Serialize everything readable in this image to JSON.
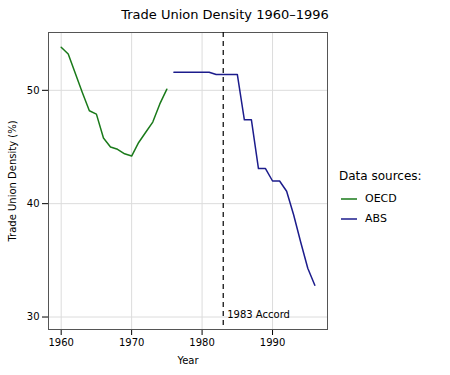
{
  "chart_data": {
    "type": "line",
    "title": "Trade Union Density 1960–1996",
    "x_label": "Year",
    "y_label": "Trade Union Density (%)",
    "legend_title": "Data sources:",
    "legend": "right",
    "grid": true,
    "x": [
      1960,
      1961,
      1962,
      1963,
      1964,
      1965,
      1966,
      1967,
      1968,
      1969,
      1970,
      1971,
      1972,
      1973,
      1974,
      1975,
      1976,
      1977,
      1978,
      1979,
      1980,
      1981,
      1982,
      1983,
      1984,
      1985,
      1986,
      1987,
      1988,
      1989,
      1990,
      1991,
      1992,
      1993,
      1994,
      1995,
      1996
    ],
    "series": [
      {
        "name": "OECD",
        "color": "#1a7a1a",
        "values": [
          53.8,
          53.2,
          51.5,
          49.8,
          48.2,
          47.9,
          45.8,
          45.0,
          44.8,
          44.4,
          44.2,
          45.4,
          46.3,
          47.2,
          48.8,
          50.1,
          null,
          null,
          null,
          null,
          null,
          null,
          null,
          null,
          null,
          null,
          null,
          null,
          null,
          null,
          null,
          null,
          null,
          null,
          null,
          null,
          null
        ]
      },
      {
        "name": "ABS",
        "color": "#1c1c8c",
        "values": [
          null,
          null,
          null,
          null,
          null,
          null,
          null,
          null,
          null,
          null,
          null,
          null,
          null,
          null,
          null,
          null,
          51.6,
          51.6,
          51.6,
          51.6,
          51.6,
          51.6,
          51.4,
          51.4,
          51.4,
          51.4,
          47.4,
          47.4,
          43.1,
          43.1,
          42.0,
          42.0,
          41.1,
          39.0,
          36.6,
          34.3,
          32.8
        ]
      }
    ],
    "annotations": [
      {
        "x": 1983,
        "text": "1983 Accord",
        "line_style": "dashed"
      }
    ],
    "xlim": [
      1958.2,
      1997.8
    ],
    "xticks": [
      1960,
      1970,
      1980,
      1990
    ],
    "ylim": [
      28.9,
      55.1
    ],
    "yticks": [
      30,
      40,
      50
    ]
  }
}
